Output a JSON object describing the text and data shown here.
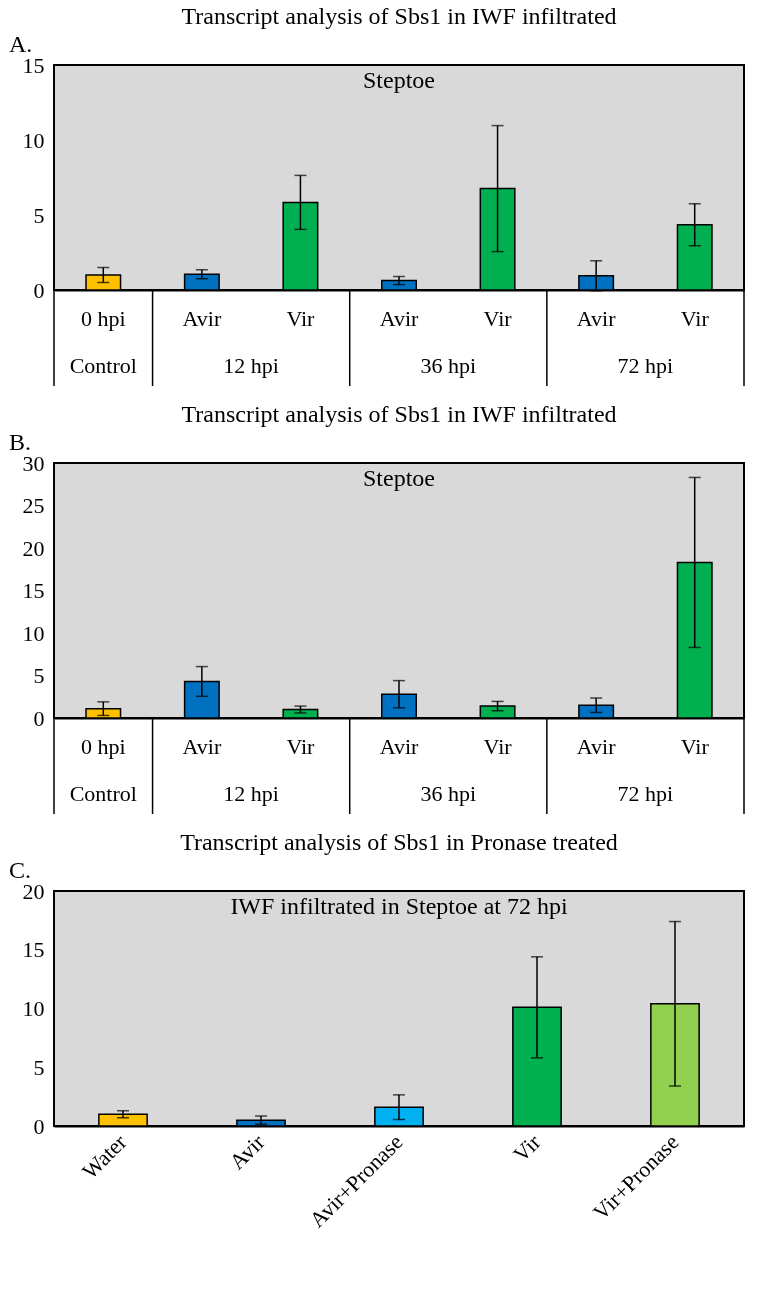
{
  "chart_data": [
    {
      "type": "bar",
      "title": "Transcript analysis of Sbs1 in IWF infiltrated",
      "subtitle": "Steptoe",
      "categories": [
        "0 hpi",
        "Avir",
        "Vir",
        "Avir",
        "Vir",
        "Avir",
        "Vir"
      ],
      "values": [
        1.0,
        1.05,
        5.84,
        0.63,
        6.76,
        0.95,
        4.35
      ],
      "errors": [
        0.5,
        0.3,
        1.8,
        0.27,
        4.2,
        1.0,
        1.4
      ],
      "colors": [
        "#ffc000",
        "#0070c0",
        "#00b050",
        "#0070c0",
        "#00b050",
        "#0070c0",
        "#00b050"
      ],
      "ylim": [
        0,
        15
      ],
      "yticks": [
        0,
        5,
        10,
        15
      ],
      "annotations": [
        "A.",
        "Control",
        "12 hpi",
        "36 hpi",
        "72 hpi"
      ]
    },
    {
      "type": "bar",
      "title": "Transcript analysis of Sbs1 in IWF infiltrated",
      "subtitle": "Steptoe",
      "categories": [
        "0 hpi",
        "Avir",
        "Vir",
        "Avir",
        "Vir",
        "Avir",
        "Vir"
      ],
      "values": [
        1.1,
        4.3,
        1.0,
        2.8,
        1.4,
        1.5,
        18.3
      ],
      "errors": [
        0.8,
        1.75,
        0.4,
        1.6,
        0.55,
        0.85,
        10
      ],
      "colors": [
        "#ffc000",
        "#0070c0",
        "#00b050",
        "#0070c0",
        "#00b050",
        "#0070c0",
        "#00b050"
      ],
      "ylim": [
        0,
        30
      ],
      "yticks": [
        0,
        5,
        10,
        15,
        20,
        25,
        30
      ],
      "annotations": [
        "B.",
        "Control",
        "12 hpi",
        "36 hpi",
        "72 hpi"
      ]
    },
    {
      "type": "bar",
      "title": "Transcript analysis of Sbs1 in Pronase treated",
      "subtitle": "IWF infiltrated in Steptoe at 72 hpi",
      "categories": [
        "Water",
        "Avir",
        "Avir+Pronase",
        "Vir",
        "Vir+Pronase"
      ],
      "values": [
        1.0,
        0.5,
        1.6,
        10.1,
        10.4
      ],
      "errors": [
        0.3,
        0.35,
        1.05,
        4.3,
        7
      ],
      "colors": [
        "#ffc000",
        "#0070c0",
        "#00b0f0",
        "#00b050",
        "#92d050"
      ],
      "ylim": [
        0,
        20
      ],
      "yticks": [
        0,
        5,
        10,
        15,
        20
      ],
      "annotations": [
        "C."
      ]
    }
  ]
}
